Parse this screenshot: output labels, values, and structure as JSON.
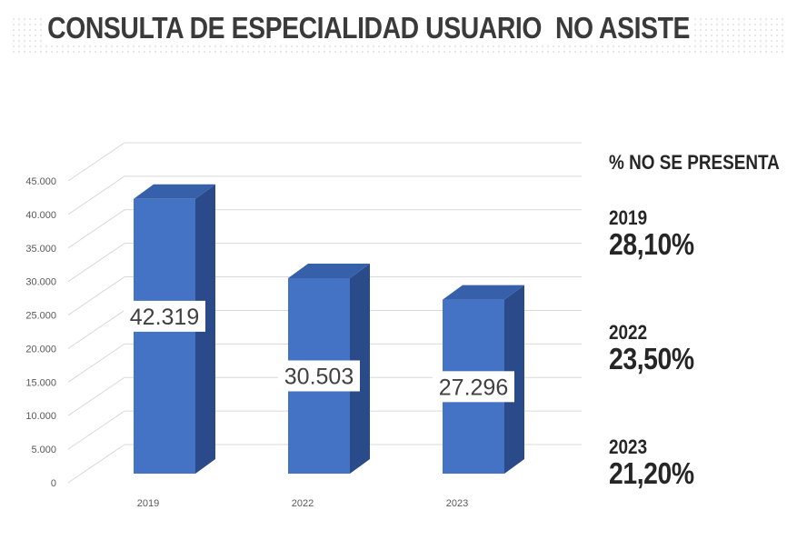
{
  "title": "CONSULTA DE ESPECIALIDAD USUARIO  NO ASISTE",
  "side_panel": {
    "heading": "% NO SE PRESENTA",
    "stats": [
      {
        "year": "2019",
        "percent": "28,10%"
      },
      {
        "year": "2022",
        "percent": "23,50%"
      },
      {
        "year": "2023",
        "percent": "21,20%"
      }
    ]
  },
  "colors": {
    "bar_front": "#4472c4",
    "bar_side": "#2a4a8a",
    "bar_top": "#3760ab",
    "gridline": "#d9d9d9",
    "text": "#262626"
  },
  "chart_data": {
    "type": "bar",
    "style": "3d-column",
    "categories": [
      "2019",
      "2022",
      "2023"
    ],
    "values": [
      42319,
      30503,
      27296
    ],
    "data_labels": [
      "42.319",
      "30.503",
      "27.296"
    ],
    "y_ticks": [
      0,
      5000,
      10000,
      15000,
      20000,
      25000,
      30000,
      35000,
      40000,
      45000
    ],
    "y_tick_labels": [
      "0",
      "5.000",
      "10.000",
      "15.000",
      "20.000",
      "25.000",
      "30.000",
      "35.000",
      "40.000",
      "45.000"
    ],
    "ylim": [
      0,
      45000
    ],
    "grid": true,
    "legend": false
  }
}
